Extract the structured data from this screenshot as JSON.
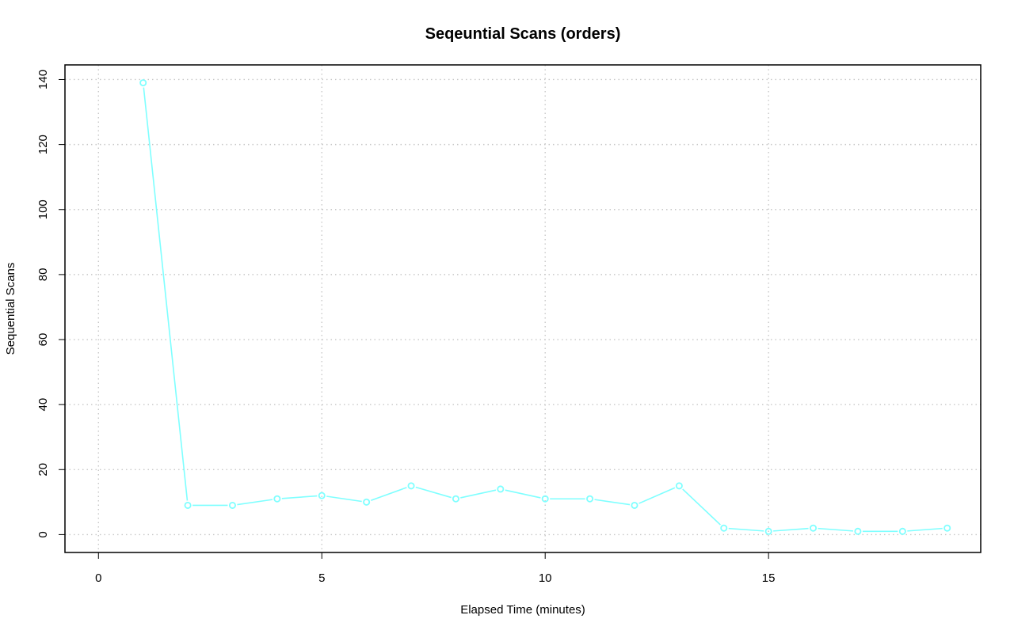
{
  "chart_data": {
    "type": "line",
    "title": "Seqeuntial Scans (orders)",
    "xlabel": "Elapsed Time (minutes)",
    "ylabel": "Sequential Scans",
    "xlim": [
      -0.75,
      19.75
    ],
    "ylim": [
      -5.5,
      144.5
    ],
    "xticks": [
      0,
      5,
      10,
      15
    ],
    "yticks": [
      0,
      20,
      40,
      60,
      80,
      100,
      120,
      140
    ],
    "grid": true,
    "series": [
      {
        "color": "#7fffff",
        "marker": "open-circle",
        "x": [
          1,
          2,
          3,
          4,
          5,
          6,
          7,
          8,
          9,
          10,
          11,
          12,
          13,
          14,
          15,
          16,
          17,
          18,
          19
        ],
        "y": [
          139,
          9,
          9,
          11,
          12,
          10,
          15,
          11,
          14,
          11,
          11,
          9,
          15,
          2,
          1,
          2,
          1,
          1,
          2
        ]
      }
    ]
  }
}
